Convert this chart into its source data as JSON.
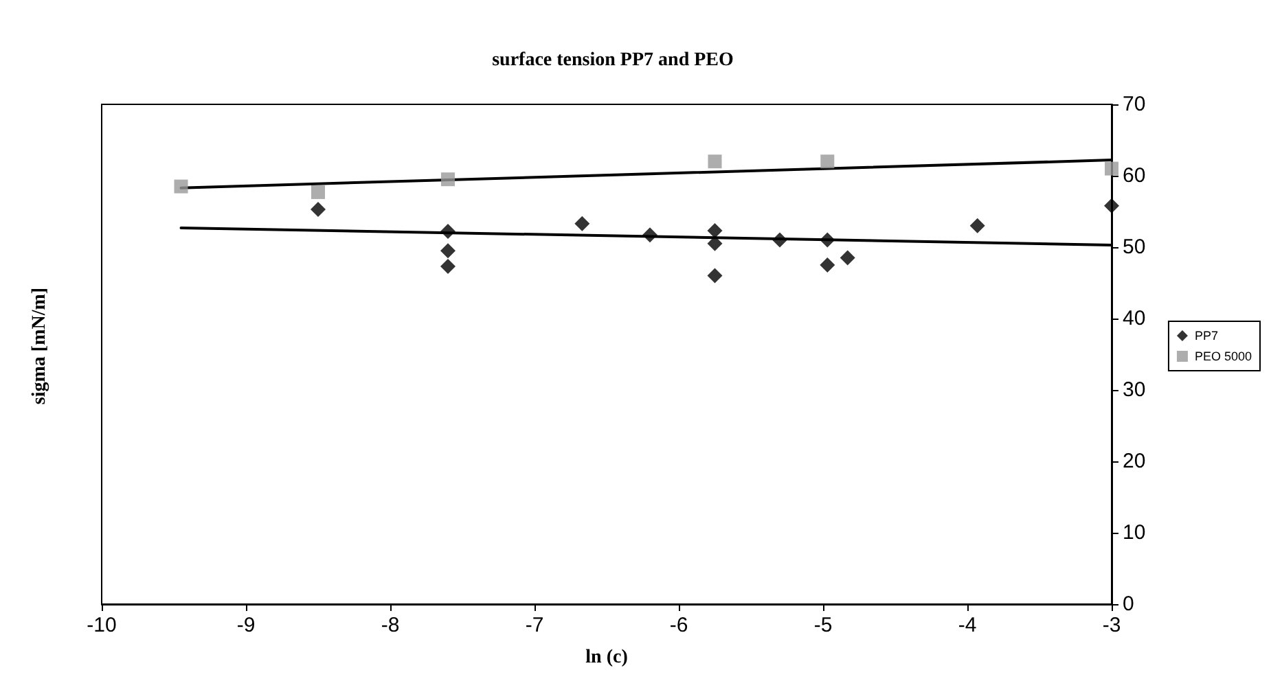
{
  "chart_data": {
    "type": "scatter",
    "title": "surface tension PP7 and PEO",
    "xlabel": "ln (c)",
    "ylabel": "sigma [mN/m]",
    "xlim": [
      -10,
      -3
    ],
    "xticks": [
      -10,
      -9,
      -8,
      -7,
      -6,
      -5,
      -4,
      -3
    ],
    "ylim": [
      0,
      70
    ],
    "yticks": [
      0,
      10,
      20,
      30,
      40,
      50,
      60,
      70
    ],
    "grid": false,
    "legend": "right",
    "series": [
      {
        "name": "PP7",
        "color": "#000000",
        "marker": "diamond",
        "x": [
          -8.5,
          -7.6,
          -7.6,
          -7.6,
          -6.67,
          -6.2,
          -5.75,
          -5.75,
          -5.75,
          -5.3,
          -4.97,
          -4.97,
          -4.83,
          -3.93,
          -3.0
        ],
        "values": [
          55.3,
          52.2,
          49.5,
          47.3,
          53.3,
          51.7,
          52.3,
          50.5,
          46,
          51,
          51,
          47.5,
          48.5,
          53,
          55.8
        ]
      },
      {
        "name": "PEO 5000",
        "color": "#999999",
        "marker": "square",
        "x": [
          -9.45,
          -8.5,
          -7.6,
          -5.75,
          -4.97,
          -3.0
        ],
        "values": [
          58.5,
          57.7,
          59.5,
          62,
          62,
          61
        ]
      },
      {
        "type": "line",
        "color": "#000000",
        "marker": "none",
        "line_style": "solid",
        "x": [
          -9.45,
          -3.0
        ],
        "values": [
          52.7,
          50.3
        ]
      },
      {
        "type": "line",
        "color": "#000000",
        "marker": "none",
        "line_style": "solid",
        "x": [
          -9.45,
          -3.0
        ],
        "values": [
          58.3,
          62.2
        ]
      }
    ]
  }
}
